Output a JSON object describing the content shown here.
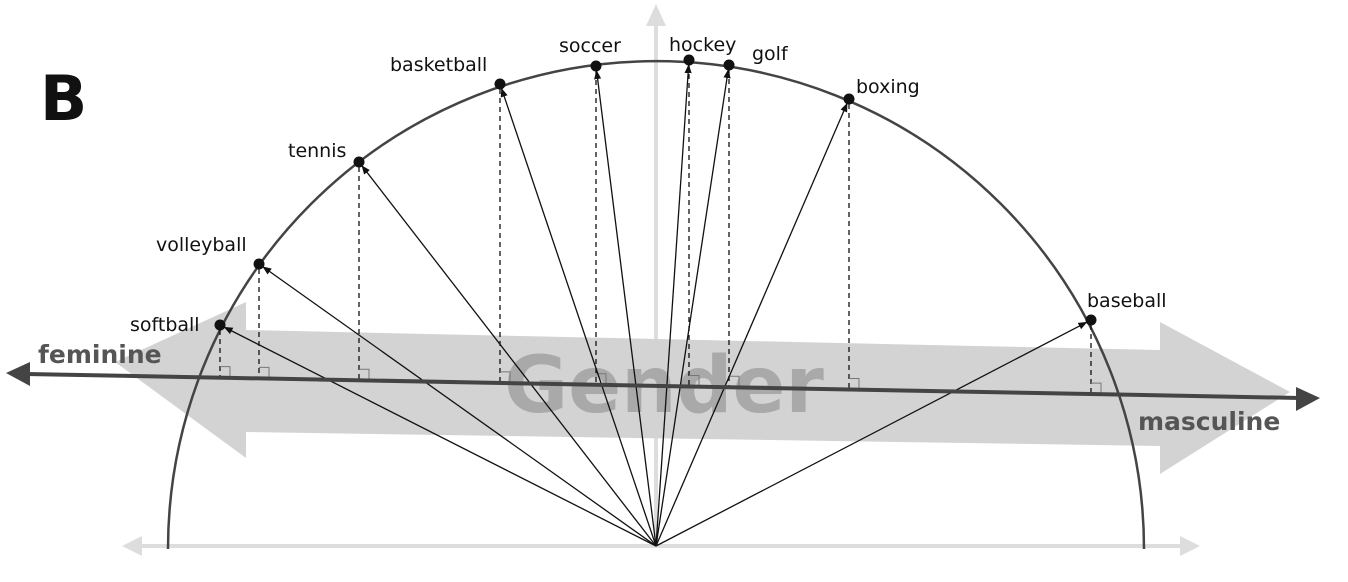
{
  "panel_label": "B",
  "gender_band": {
    "label": "Gender"
  },
  "gender_axis": {
    "negative_label": "feminine",
    "positive_label": "masculine"
  },
  "words": [
    {
      "label": "softball"
    },
    {
      "label": "volleyball"
    },
    {
      "label": "tennis"
    },
    {
      "label": "basketball"
    },
    {
      "label": "soccer"
    },
    {
      "label": "hockey"
    },
    {
      "label": "golf"
    },
    {
      "label": "boxing"
    },
    {
      "label": "baseball"
    }
  ],
  "colors": {
    "band": "#d3d3d3",
    "band_text": "#a9a9a9",
    "gender_axis": "#444444",
    "axis_end_text": "#555555",
    "semicircle": "#444444",
    "vectors": "#111111",
    "background_axes": "#dddddd"
  }
}
